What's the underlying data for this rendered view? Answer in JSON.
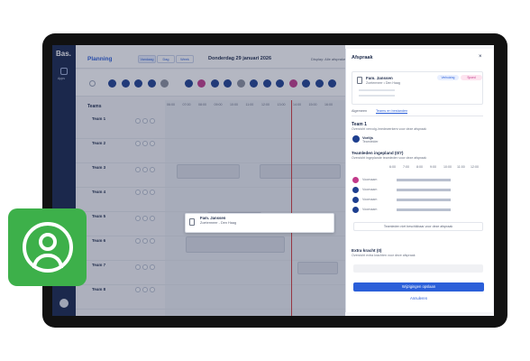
{
  "sidebar": {
    "logo": "Bas.",
    "nav_label": "Apps"
  },
  "header": {
    "title": "Planning",
    "tabs": [
      "Vandaag",
      "Dag",
      "Week"
    ],
    "date": "Donderdag 29 januari 2026",
    "display": "Display: Alle afspraken"
  },
  "schedule": {
    "teams_label": "Teams",
    "times": [
      "06:00",
      "07:00",
      "08:00",
      "09:00",
      "10:00",
      "11:00",
      "12:00",
      "13:00",
      "14:00",
      "15:00",
      "16:00"
    ],
    "teams": [
      "Team 1",
      "Team 2",
      "Team 3",
      "Team 4",
      "Team 5",
      "Team 6",
      "Team 7",
      "Team 8"
    ],
    "card": {
      "name": "Fam. Janssen",
      "route": "Zoetermeer - Den Haag"
    }
  },
  "panel": {
    "title": "Afspraak",
    "name": "Fam. Janssen",
    "route": "Zoetermeer • Den Haag",
    "tags": [
      "Verhuizing",
      "Spoed"
    ],
    "tabs": [
      "Algemeen",
      "Teams en bestanden"
    ],
    "team": "Team 1",
    "team_sub": "Overzicht vervolg-/medewerkers voor deze afspraak",
    "leader": "Vorlijs",
    "leader_role": "Teamleider",
    "members_title": "Teamleden ingepland (0/7)",
    "members_sub": "Overzicht ingeplande teamleden voor deze afspraak",
    "hours": [
      "6:00",
      "7:00",
      "8:00",
      "9:00",
      "10:00",
      "11:00",
      "12:00"
    ],
    "members": [
      "Voornaam",
      "Voornaam",
      "Voornaam",
      "Voornaam"
    ],
    "unavailable": "Teamleden niet beschikbaar voor deze afspraak",
    "extra_title": "Extra kracht (0)",
    "extra_sub": "Overzicht extra krachten voor deze afspraak",
    "save": "Wijzigingen opslaan",
    "cancel": "Annuleren"
  }
}
